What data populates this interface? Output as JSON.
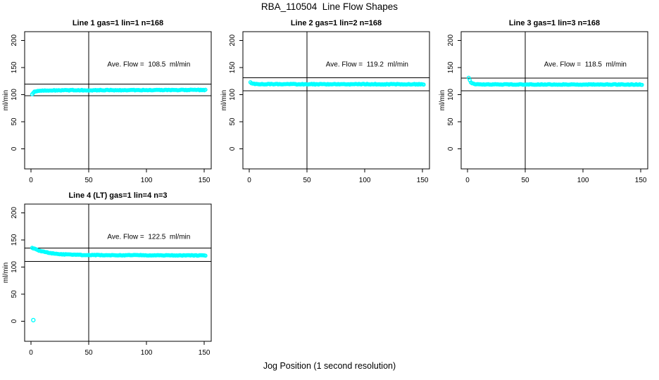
{
  "figure": {
    "title": "RBA_110504  Line Flow Shapes",
    "xlabel": "Jog Position (1 second resolution)",
    "background": "#FFFFFF"
  },
  "chart_data": {
    "type": "scatter",
    "title": "RBA_110504  Line Flow Shapes",
    "xlabel": "Jog Position (1 second resolution)",
    "ylabel": "ml/min",
    "shared": {
      "x_ticks": [
        0,
        50,
        100,
        150
      ],
      "y_ticks": [
        0,
        50,
        100,
        150,
        200
      ],
      "xlim": [
        -5.5,
        156
      ],
      "ylim": [
        -37,
        216
      ],
      "vline_x": 50,
      "point_color": "#00FFFF",
      "line_color": "#000000",
      "grid": false,
      "marker": "open-circle"
    },
    "plots": [
      {
        "title": "Line 1 gas=1 lin=1 n=168",
        "ave_flow": 108.5,
        "ave_flow_label": "Ave. Flow =  108.5  ml/min",
        "ref_line_upper": 119.4,
        "ref_line_lower": 97.7,
        "series_profile": [
          [
            1,
            100
          ],
          [
            2,
            103.5
          ],
          [
            3,
            105
          ],
          [
            5,
            106.5
          ],
          [
            10,
            107.5
          ],
          [
            30,
            108
          ],
          [
            151,
            108.5
          ]
        ],
        "noise_amp": 1.3,
        "outliers": []
      },
      {
        "title": "Line 2 gas=1 lin=2 n=168",
        "ave_flow": 119.2,
        "ave_flow_label": "Ave. Flow =  119.2  ml/min",
        "ref_line_upper": 131.1,
        "ref_line_lower": 107.3,
        "series_profile": [
          [
            1,
            122.5
          ],
          [
            2,
            121
          ],
          [
            4,
            120
          ],
          [
            8,
            119.5
          ],
          [
            20,
            119.2
          ],
          [
            151,
            119
          ]
        ],
        "noise_amp": 1.3,
        "outliers": []
      },
      {
        "title": "Line 3 gas=1 lin=3 n=168",
        "ave_flow": 118.5,
        "ave_flow_label": "Ave. Flow =  118.5  ml/min",
        "ref_line_upper": 130.4,
        "ref_line_lower": 106.7,
        "series_profile": [
          [
            1,
            131
          ],
          [
            2,
            126
          ],
          [
            3,
            122.5
          ],
          [
            4,
            120.5
          ],
          [
            6,
            119.3
          ],
          [
            15,
            118.7
          ],
          [
            151,
            118.5
          ]
        ],
        "noise_amp": 1.3,
        "outliers": []
      },
      {
        "title": "Line 4 (LT) gas=1 lin=4 n=3",
        "ave_flow": 122.5,
        "ave_flow_label": "Ave. Flow =  122.5  ml/min",
        "ref_line_upper": 134.8,
        "ref_line_lower": 110.3,
        "series_profile": [
          [
            1,
            135.5
          ],
          [
            3,
            133.5
          ],
          [
            6,
            131
          ],
          [
            10,
            128.5
          ],
          [
            15,
            126.3
          ],
          [
            20,
            124.8
          ],
          [
            28,
            123.3
          ],
          [
            40,
            122.3
          ],
          [
            70,
            121.8
          ],
          [
            151,
            121.3
          ]
        ],
        "noise_amp": 1.1,
        "outliers": [
          [
            2,
            2
          ]
        ]
      }
    ]
  }
}
